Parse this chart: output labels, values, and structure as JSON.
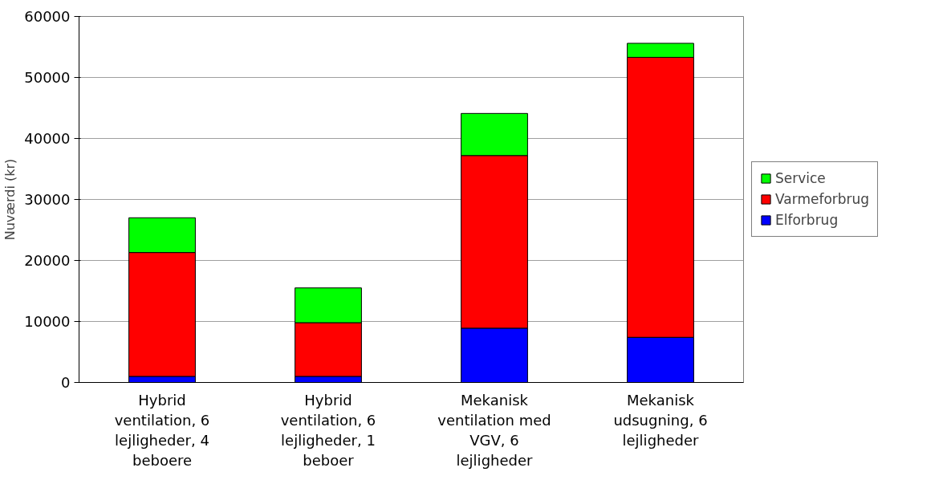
{
  "chart_data": {
    "type": "bar",
    "stacked": true,
    "ylabel": "Nuværdi (kr)",
    "categories": [
      "Hybrid ventilation, 6 lejligheder, 4 beboere",
      "Hybrid ventilation, 6 lejligheder, 1 beboer",
      "Mekanisk ventilation med VGV, 6 lejligheder",
      "Mekanisk udsugning, 6 lejligheder"
    ],
    "series": [
      {
        "name": "Elforbrug",
        "color": "#0000ff",
        "values": [
          1000,
          1000,
          8900,
          7400
        ]
      },
      {
        "name": "Varmeforbrug",
        "color": "#ff0000",
        "values": [
          20300,
          8800,
          28300,
          45900
        ]
      },
      {
        "name": "Service",
        "color": "#00ff00",
        "values": [
          5700,
          5700,
          6900,
          2300
        ]
      }
    ],
    "ylim": [
      0,
      60000
    ],
    "yticks": [
      0,
      10000,
      20000,
      30000,
      40000,
      50000,
      60000
    ],
    "grid": "y",
    "legend": "right"
  }
}
